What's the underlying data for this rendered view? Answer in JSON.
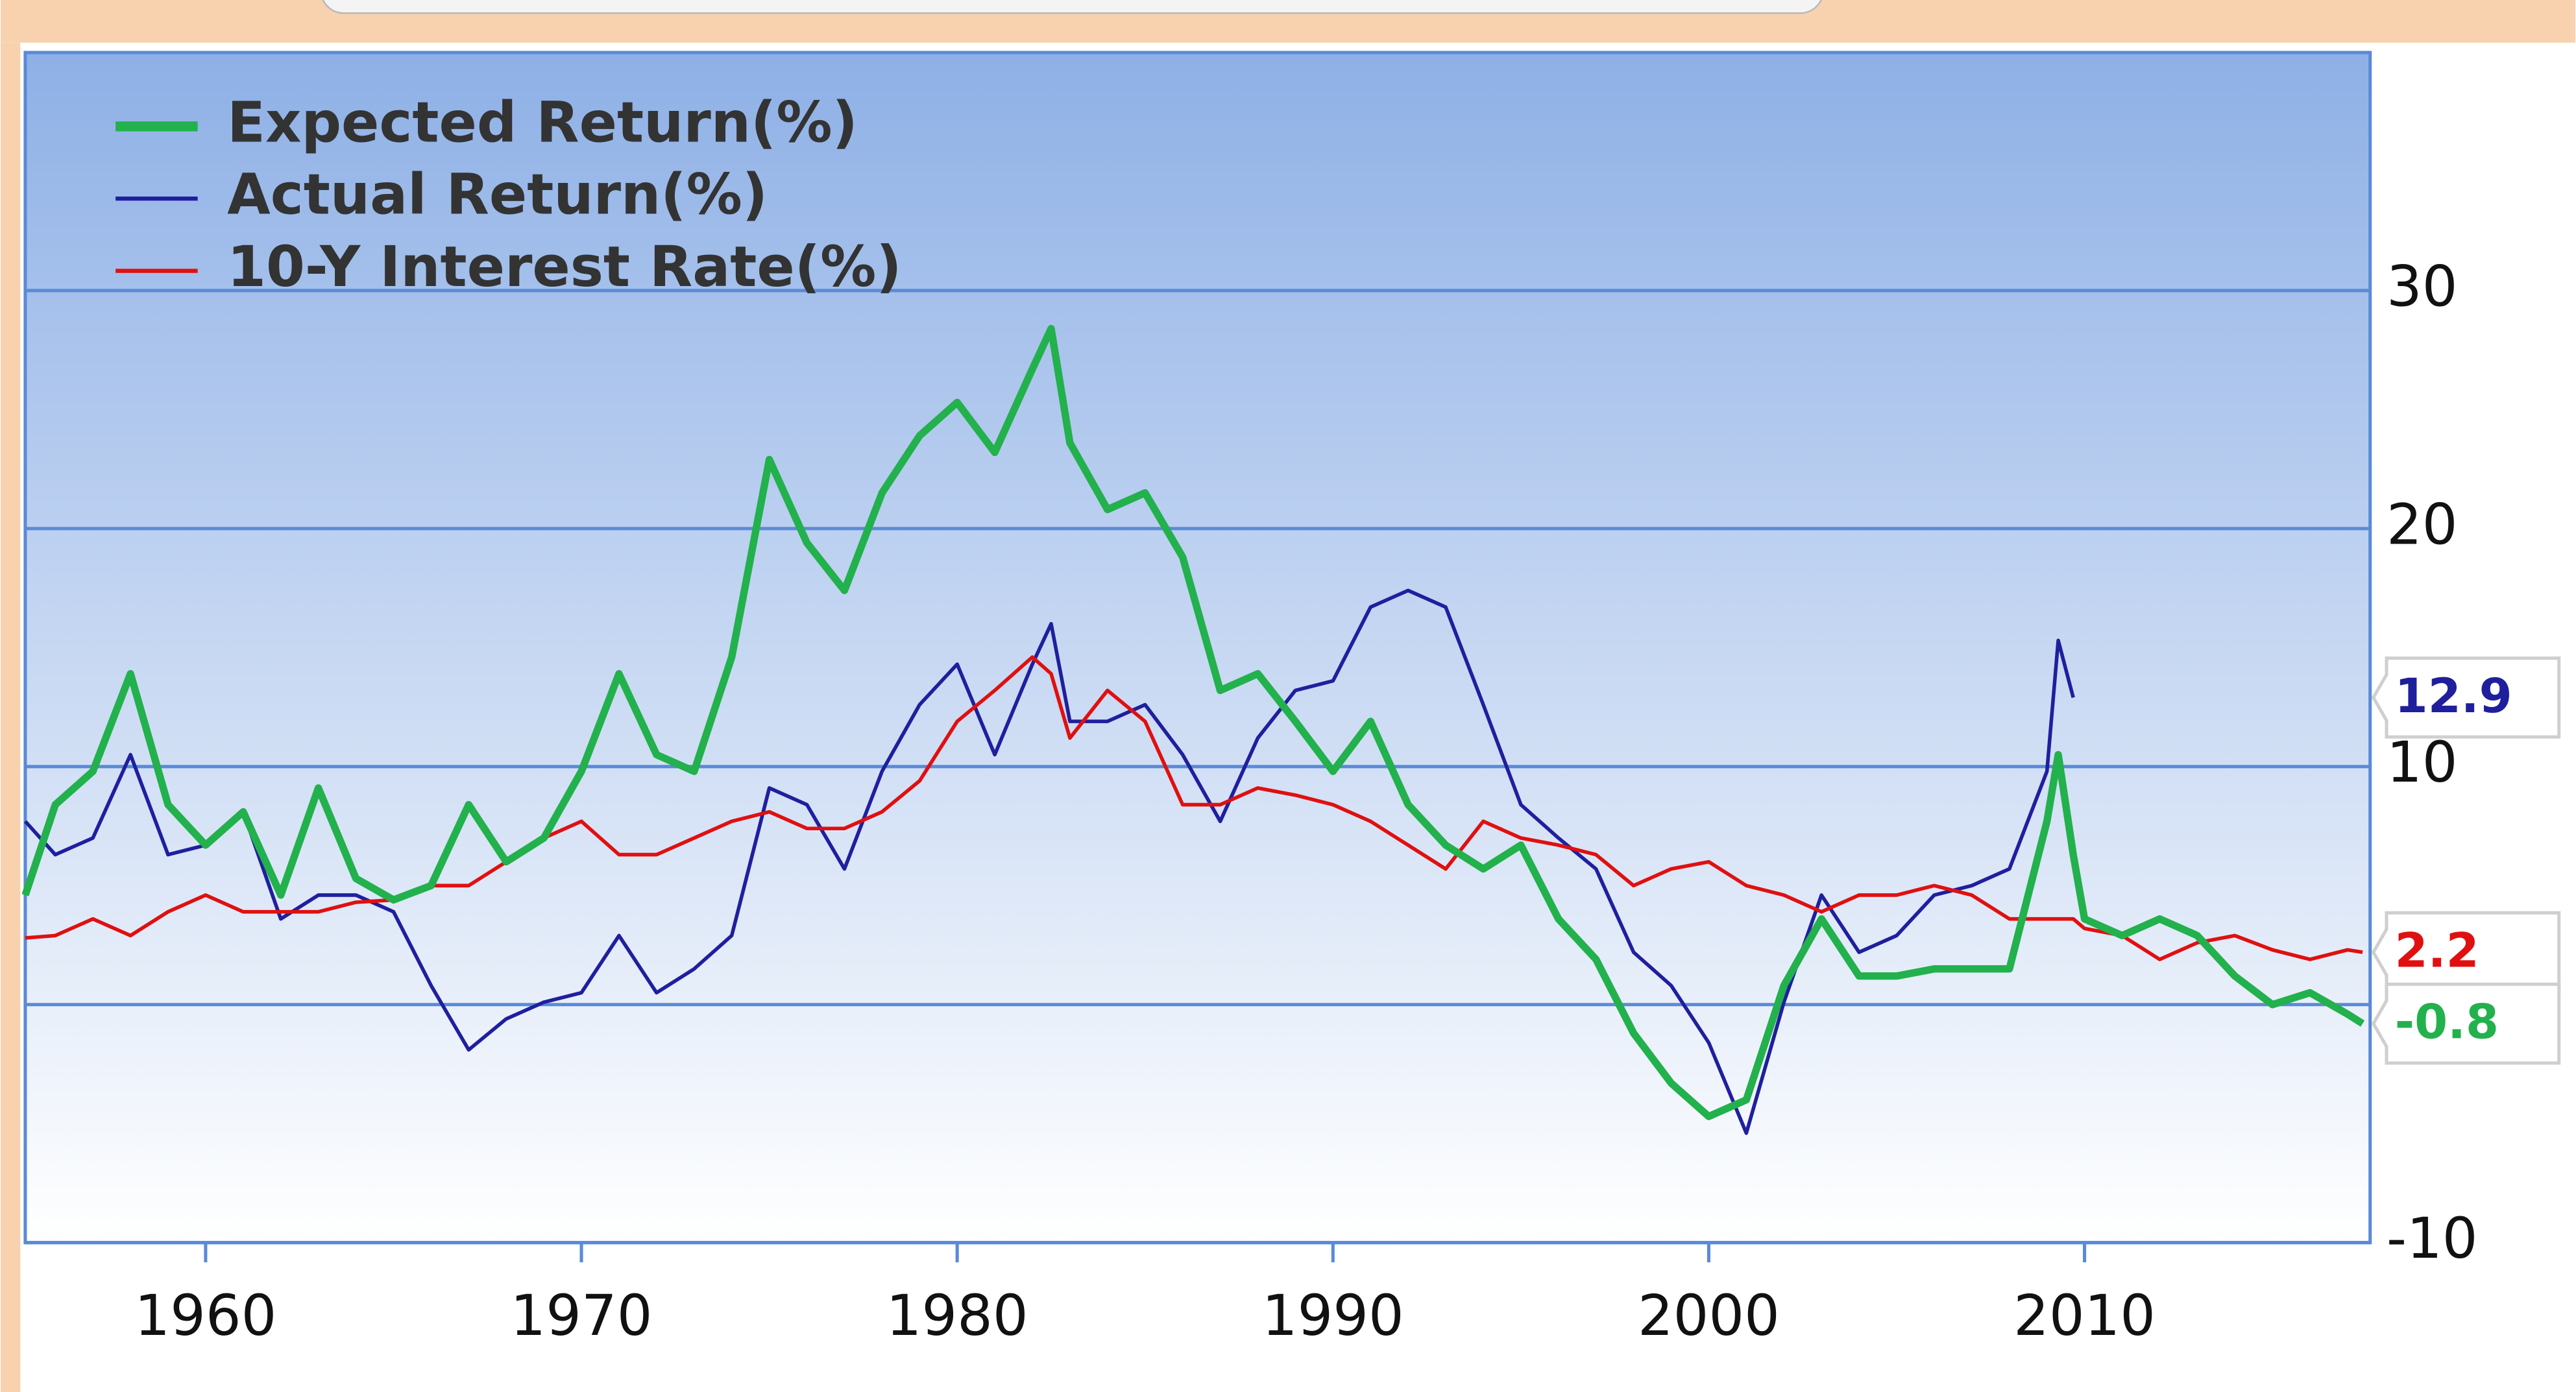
{
  "chart_data": {
    "type": "line",
    "x": [
      1955.2,
      1956,
      1957,
      1958,
      1959,
      1960,
      1961,
      1962,
      1963,
      1964,
      1965,
      1966,
      1967,
      1968,
      1969,
      1970,
      1971,
      1972,
      1973,
      1974,
      1975,
      1976,
      1977,
      1978,
      1979,
      1980,
      1981,
      1982,
      1982.5,
      1983,
      1984,
      1985,
      1986,
      1987,
      1988,
      1989,
      1990,
      1991,
      1992,
      1993,
      1994,
      1995,
      1996,
      1997,
      1998,
      1999,
      2000,
      2001,
      2002,
      2003,
      2004,
      2005,
      2006,
      2007,
      2008,
      2009,
      2009.3,
      2009.7,
      2010,
      2011,
      2012,
      2013,
      2014,
      2015,
      2016,
      2017,
      2017.4
    ],
    "series": [
      {
        "name": "Expected Return(%)",
        "color": "#22b14c",
        "values": [
          4.6,
          8.4,
          9.8,
          13.9,
          8.4,
          6.7,
          8.1,
          4.6,
          9.1,
          5.3,
          4.4,
          5,
          8.4,
          6,
          7,
          9.8,
          13.9,
          10.5,
          9.8,
          14.6,
          22.9,
          19.4,
          17.4,
          21.5,
          23.9,
          25.3,
          23.2,
          26.7,
          28.4,
          23.6,
          20.8,
          21.5,
          18.8,
          13.2,
          13.9,
          11.9,
          9.8,
          11.9,
          8.4,
          6.7,
          5.7,
          6.7,
          3.6,
          1.9,
          -1.2,
          -3.3,
          -4.7,
          -4,
          0.8,
          3.6,
          1.2,
          1.2,
          1.5,
          1.5,
          1.5,
          7.7,
          10.5,
          6.3,
          3.6,
          2.9,
          3.6,
          2.9,
          1.2,
          0,
          0.5,
          -0.4,
          -0.8
        ]
      },
      {
        "name": "Actual Return(%)",
        "color": "#1f1f9e",
        "values": [
          7.7,
          6.3,
          7,
          10.5,
          6.3,
          6.7,
          8.1,
          3.6,
          4.6,
          4.6,
          3.9,
          0.8,
          -1.9,
          -0.6,
          0.1,
          0.5,
          2.9,
          0.5,
          1.5,
          2.9,
          9.1,
          8.4,
          5.7,
          9.8,
          12.6,
          14.3,
          10.5,
          14.3,
          16,
          11.9,
          11.9,
          12.6,
          10.5,
          7.7,
          11.2,
          13.2,
          13.6,
          16.7,
          17.4,
          16.7,
          12.6,
          8.4,
          7,
          5.7,
          2.2,
          0.8,
          -1.6,
          -5.4,
          0.1,
          4.6,
          2.2,
          2.9,
          4.6,
          5,
          5.7,
          9.8,
          15.3,
          12.9,
          null,
          null,
          null,
          null,
          null,
          null,
          null,
          null,
          null
        ]
      },
      {
        "name": "10-Y Interest Rate(%)",
        "color": "#e01010",
        "values": [
          2.8,
          2.9,
          3.6,
          2.9,
          3.9,
          4.6,
          3.9,
          3.9,
          3.9,
          4.3,
          4.4,
          5,
          5,
          6,
          7,
          7.7,
          6.3,
          6.3,
          7,
          7.7,
          8.1,
          7.4,
          7.4,
          8.1,
          9.4,
          11.9,
          13.2,
          14.6,
          13.9,
          11.2,
          13.2,
          11.9,
          8.4,
          8.4,
          9.1,
          8.8,
          8.4,
          7.7,
          6.7,
          5.7,
          7.7,
          7,
          6.7,
          6.3,
          5,
          5.7,
          6,
          5,
          4.6,
          3.9,
          4.6,
          4.6,
          5,
          4.6,
          3.6,
          3.6,
          3.6,
          3.6,
          3.2,
          2.9,
          1.9,
          2.6,
          2.9,
          2.3,
          1.9,
          2.3,
          2.2
        ]
      }
    ],
    "xlim": [
      1955.2,
      2017.6
    ],
    "xticks": [
      1960,
      1970,
      1980,
      1990,
      2000,
      2010
    ],
    "ylim": [
      -10,
      40
    ],
    "yticks": [
      -10,
      0,
      10,
      20,
      30
    ],
    "grid": true,
    "legend": "top-left"
  }
}
